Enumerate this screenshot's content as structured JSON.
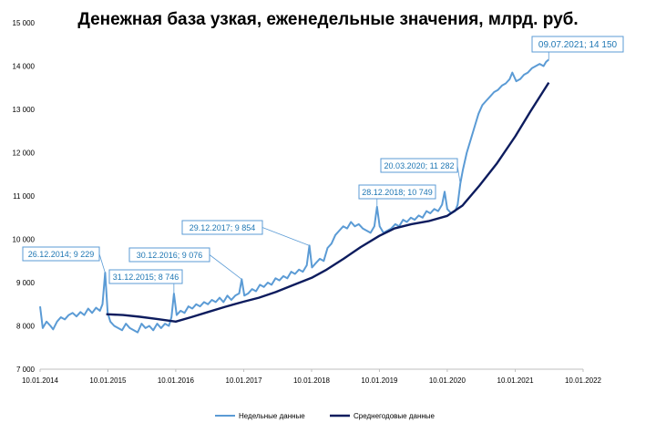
{
  "chart_data": {
    "type": "line",
    "title": "Денежная база узкая, еженедельные значения, млрд. руб.",
    "xlabel": "",
    "ylabel": "",
    "ylim": [
      7000,
      15000
    ],
    "xlim": [
      "2014-01-10",
      "2022-01-10"
    ],
    "y_ticks": [
      "7 000",
      "8 000",
      "9 000",
      "10 000",
      "11 000",
      "12 000",
      "13 000",
      "14 000",
      "15 000"
    ],
    "x_ticks": [
      {
        "date": "2014-01-10",
        "label": "10.01.2014"
      },
      {
        "date": "2015-01-10",
        "label": "10.01.2015"
      },
      {
        "date": "2016-01-10",
        "label": "10.01.2016"
      },
      {
        "date": "2017-01-10",
        "label": "10.01.2017"
      },
      {
        "date": "2018-01-10",
        "label": "10.01.2018"
      },
      {
        "date": "2019-01-10",
        "label": "10.01.2019"
      },
      {
        "date": "2020-01-10",
        "label": "10.01.2020"
      },
      {
        "date": "2021-01-10",
        "label": "10.01.2021"
      },
      {
        "date": "2022-01-10",
        "label": "10.01.2022"
      }
    ],
    "grid": false,
    "legend_position": "bottom",
    "series": [
      {
        "name": "Недельные данные",
        "color": "#5b9bd5",
        "points": [
          [
            "2014-01-10",
            8450
          ],
          [
            "2014-01-24",
            7950
          ],
          [
            "2014-02-14",
            8100
          ],
          [
            "2014-03-07",
            8000
          ],
          [
            "2014-03-21",
            7920
          ],
          [
            "2014-04-11",
            8100
          ],
          [
            "2014-05-02",
            8200
          ],
          [
            "2014-05-23",
            8150
          ],
          [
            "2014-06-13",
            8250
          ],
          [
            "2014-07-04",
            8300
          ],
          [
            "2014-07-25",
            8220
          ],
          [
            "2014-08-15",
            8320
          ],
          [
            "2014-09-05",
            8250
          ],
          [
            "2014-09-26",
            8400
          ],
          [
            "2014-10-17",
            8300
          ],
          [
            "2014-11-07",
            8420
          ],
          [
            "2014-11-28",
            8350
          ],
          [
            "2014-12-12",
            8500
          ],
          [
            "2014-12-26",
            9229
          ],
          [
            "2015-01-09",
            8300
          ],
          [
            "2015-01-23",
            8100
          ],
          [
            "2015-02-13",
            8000
          ],
          [
            "2015-03-06",
            7950
          ],
          [
            "2015-03-27",
            7900
          ],
          [
            "2015-04-17",
            8050
          ],
          [
            "2015-05-08",
            7950
          ],
          [
            "2015-05-29",
            7900
          ],
          [
            "2015-06-19",
            7850
          ],
          [
            "2015-07-10",
            8050
          ],
          [
            "2015-07-31",
            7950
          ],
          [
            "2015-08-21",
            8000
          ],
          [
            "2015-09-11",
            7900
          ],
          [
            "2015-10-02",
            8050
          ],
          [
            "2015-10-23",
            7950
          ],
          [
            "2015-11-13",
            8050
          ],
          [
            "2015-12-04",
            8000
          ],
          [
            "2015-12-18",
            8200
          ],
          [
            "2015-12-31",
            8746
          ],
          [
            "2016-01-15",
            8250
          ],
          [
            "2016-02-05",
            8350
          ],
          [
            "2016-02-26",
            8300
          ],
          [
            "2016-03-18",
            8450
          ],
          [
            "2016-04-08",
            8400
          ],
          [
            "2016-04-29",
            8500
          ],
          [
            "2016-05-20",
            8450
          ],
          [
            "2016-06-10",
            8550
          ],
          [
            "2016-07-01",
            8500
          ],
          [
            "2016-07-22",
            8600
          ],
          [
            "2016-08-12",
            8550
          ],
          [
            "2016-09-02",
            8650
          ],
          [
            "2016-09-23",
            8550
          ],
          [
            "2016-10-14",
            8700
          ],
          [
            "2016-11-04",
            8600
          ],
          [
            "2016-11-25",
            8700
          ],
          [
            "2016-12-16",
            8750
          ],
          [
            "2016-12-30",
            9076
          ],
          [
            "2017-01-13",
            8700
          ],
          [
            "2017-02-03",
            8750
          ],
          [
            "2017-02-24",
            8850
          ],
          [
            "2017-03-17",
            8800
          ],
          [
            "2017-04-07",
            8950
          ],
          [
            "2017-04-28",
            8900
          ],
          [
            "2017-05-19",
            9000
          ],
          [
            "2017-06-09",
            8950
          ],
          [
            "2017-06-30",
            9100
          ],
          [
            "2017-07-21",
            9050
          ],
          [
            "2017-08-11",
            9150
          ],
          [
            "2017-09-01",
            9100
          ],
          [
            "2017-09-22",
            9250
          ],
          [
            "2017-10-13",
            9200
          ],
          [
            "2017-11-03",
            9300
          ],
          [
            "2017-11-24",
            9250
          ],
          [
            "2017-12-15",
            9400
          ],
          [
            "2017-12-29",
            9854
          ],
          [
            "2018-01-12",
            9350
          ],
          [
            "2018-02-02",
            9450
          ],
          [
            "2018-02-23",
            9550
          ],
          [
            "2018-03-16",
            9500
          ],
          [
            "2018-04-06",
            9800
          ],
          [
            "2018-04-27",
            9900
          ],
          [
            "2018-05-18",
            10100
          ],
          [
            "2018-06-08",
            10200
          ],
          [
            "2018-06-29",
            10300
          ],
          [
            "2018-07-20",
            10250
          ],
          [
            "2018-08-10",
            10400
          ],
          [
            "2018-08-31",
            10300
          ],
          [
            "2018-09-21",
            10350
          ],
          [
            "2018-10-12",
            10250
          ],
          [
            "2018-11-02",
            10200
          ],
          [
            "2018-11-23",
            10150
          ],
          [
            "2018-12-14",
            10300
          ],
          [
            "2018-12-28",
            10749
          ],
          [
            "2019-01-11",
            10300
          ],
          [
            "2019-02-01",
            10150
          ],
          [
            "2019-02-22",
            10200
          ],
          [
            "2019-03-15",
            10250
          ],
          [
            "2019-04-05",
            10350
          ],
          [
            "2019-04-26",
            10300
          ],
          [
            "2019-05-17",
            10450
          ],
          [
            "2019-06-07",
            10400
          ],
          [
            "2019-06-28",
            10500
          ],
          [
            "2019-07-19",
            10450
          ],
          [
            "2019-08-09",
            10550
          ],
          [
            "2019-08-30",
            10500
          ],
          [
            "2019-09-20",
            10650
          ],
          [
            "2019-10-11",
            10600
          ],
          [
            "2019-11-01",
            10700
          ],
          [
            "2019-11-22",
            10650
          ],
          [
            "2019-12-13",
            10800
          ],
          [
            "2019-12-27",
            11100
          ],
          [
            "2020-01-10",
            10700
          ],
          [
            "2020-01-31",
            10600
          ],
          [
            "2020-02-21",
            10650
          ],
          [
            "2020-03-06",
            10800
          ],
          [
            "2020-03-20",
            11282
          ],
          [
            "2020-04-03",
            11600
          ],
          [
            "2020-04-24",
            12000
          ],
          [
            "2020-05-15",
            12300
          ],
          [
            "2020-06-05",
            12600
          ],
          [
            "2020-06-26",
            12900
          ],
          [
            "2020-07-17",
            13100
          ],
          [
            "2020-08-07",
            13200
          ],
          [
            "2020-08-28",
            13300
          ],
          [
            "2020-09-18",
            13400
          ],
          [
            "2020-10-09",
            13450
          ],
          [
            "2020-10-30",
            13550
          ],
          [
            "2020-11-20",
            13600
          ],
          [
            "2020-12-11",
            13700
          ],
          [
            "2020-12-25",
            13850
          ],
          [
            "2021-01-15",
            13650
          ],
          [
            "2021-02-05",
            13700
          ],
          [
            "2021-02-26",
            13800
          ],
          [
            "2021-03-19",
            13850
          ],
          [
            "2021-04-09",
            13950
          ],
          [
            "2021-04-30",
            14000
          ],
          [
            "2021-05-21",
            14050
          ],
          [
            "2021-06-11",
            14000
          ],
          [
            "2021-06-25",
            14100
          ],
          [
            "2021-07-09",
            14150
          ]
        ]
      },
      {
        "name": "Среднегодовые данные",
        "color": "#0d1c5e",
        "points": [
          [
            "2015-01-01",
            8270
          ],
          [
            "2015-04-01",
            8250
          ],
          [
            "2015-07-01",
            8210
          ],
          [
            "2015-10-01",
            8160
          ],
          [
            "2016-01-10",
            8100
          ],
          [
            "2016-04-01",
            8200
          ],
          [
            "2016-07-01",
            8320
          ],
          [
            "2016-10-01",
            8440
          ],
          [
            "2017-01-10",
            8560
          ],
          [
            "2017-04-01",
            8650
          ],
          [
            "2017-07-01",
            8780
          ],
          [
            "2017-10-01",
            8940
          ],
          [
            "2018-01-10",
            9110
          ],
          [
            "2018-04-01",
            9300
          ],
          [
            "2018-07-01",
            9550
          ],
          [
            "2018-10-01",
            9820
          ],
          [
            "2019-01-10",
            10080
          ],
          [
            "2019-04-01",
            10250
          ],
          [
            "2019-07-01",
            10350
          ],
          [
            "2019-10-01",
            10420
          ],
          [
            "2020-01-10",
            10540
          ],
          [
            "2020-04-01",
            10780
          ],
          [
            "2020-07-01",
            11240
          ],
          [
            "2020-10-01",
            11740
          ],
          [
            "2021-01-10",
            12380
          ],
          [
            "2021-04-01",
            12950
          ],
          [
            "2021-07-09",
            13620
          ]
        ]
      }
    ],
    "annotations": [
      {
        "text": "26.12.2014; 9 229",
        "point": [
          "2014-12-26",
          9229
        ]
      },
      {
        "text": "31.12.2015; 8 746",
        "point": [
          "2015-12-31",
          8746
        ]
      },
      {
        "text": "30.12.2016; 9 076",
        "point": [
          "2016-12-30",
          9076
        ]
      },
      {
        "text": "29.12.2017; 9 854",
        "point": [
          "2017-12-29",
          9854
        ]
      },
      {
        "text": "28.12.2018; 10 749",
        "point": [
          "2018-12-28",
          10749
        ]
      },
      {
        "text": "20.03.2020; 11 282",
        "point": [
          "2020-03-20",
          11282
        ]
      },
      {
        "text": "09.07.2021; 14 150",
        "point": [
          "2021-07-09",
          14150
        ]
      }
    ]
  }
}
